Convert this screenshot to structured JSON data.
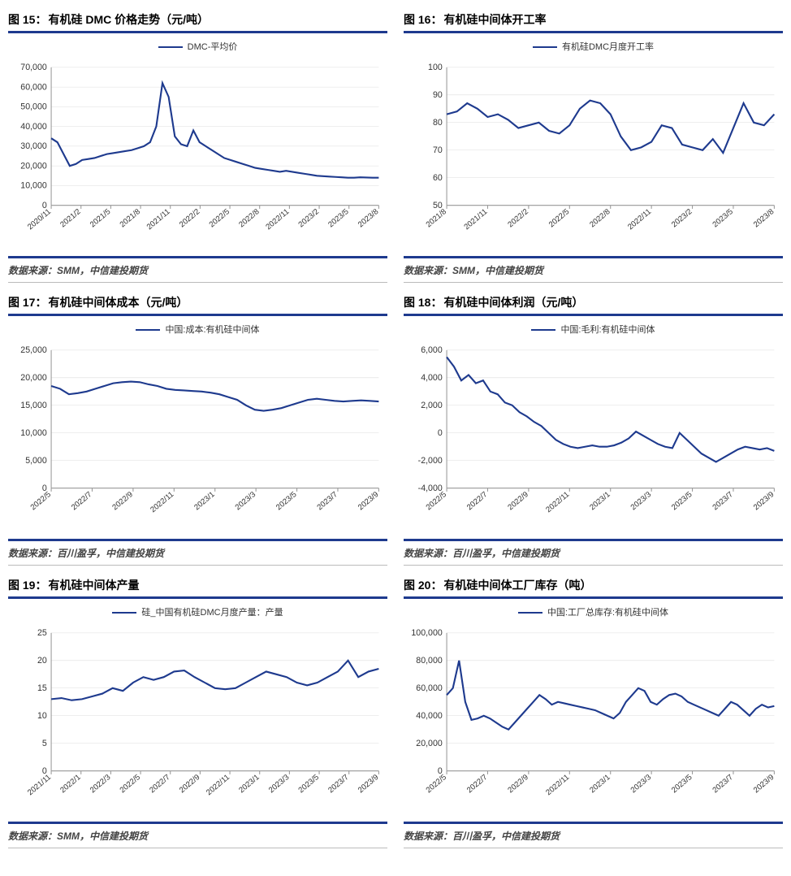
{
  "colors": {
    "primary": "#1e3a8e",
    "grid": "#dddddd",
    "axis": "#999999",
    "text": "#333333",
    "bg": "#ffffff"
  },
  "charts": [
    {
      "id": "c15",
      "fig_label": "图 15：",
      "title": "有机硅 DMC 价格走势（元/吨）",
      "legend": "DMC-平均价",
      "source": "数据来源：SMM，中信建投期货",
      "type": "line",
      "ylim": [
        0,
        70000
      ],
      "ytick_step": 10000,
      "yformat": "comma",
      "xticks": [
        "2020/11",
        "2021/2",
        "2021/5",
        "2021/8",
        "2021/11",
        "2022/2",
        "2022/5",
        "2022/8",
        "2022/11",
        "2023/2",
        "2023/5",
        "2023/8"
      ],
      "values": [
        34000,
        32000,
        26000,
        20000,
        21000,
        23000,
        23500,
        24000,
        25000,
        26000,
        26500,
        27000,
        27500,
        28000,
        29000,
        30000,
        32000,
        40000,
        62000,
        55000,
        35000,
        31000,
        30000,
        38000,
        32000,
        30000,
        28000,
        26000,
        24000,
        23000,
        22000,
        21000,
        20000,
        19000,
        18500,
        18000,
        17500,
        17000,
        17500,
        17000,
        16500,
        16000,
        15500,
        15000,
        14800,
        14600,
        14400,
        14200,
        14000,
        14000,
        14200,
        14100,
        14000,
        14000
      ],
      "line_color": "#1e3a8e",
      "line_width": 2
    },
    {
      "id": "c16",
      "fig_label": "图 16：",
      "title": "有机硅中间体开工率",
      "legend": "有机硅DMC月度开工率",
      "source": "数据来源：SMM，中信建投期货",
      "type": "line",
      "ylim": [
        50,
        100
      ],
      "ytick_step": 10,
      "yformat": "plain",
      "xticks": [
        "2021/8",
        "2021/11",
        "2022/2",
        "2022/5",
        "2022/8",
        "2022/11",
        "2023/2",
        "2023/5",
        "2023/8"
      ],
      "values": [
        83,
        84,
        87,
        85,
        82,
        83,
        81,
        78,
        79,
        80,
        77,
        76,
        79,
        85,
        88,
        87,
        83,
        75,
        70,
        71,
        73,
        79,
        78,
        72,
        71,
        70,
        74,
        69,
        78,
        87,
        80,
        79,
        83
      ],
      "line_color": "#1e3a8e",
      "line_width": 2
    },
    {
      "id": "c17",
      "fig_label": "图 17：",
      "title": "有机硅中间体成本（元/吨）",
      "legend": "中国:成本:有机硅中间体",
      "source": "数据来源：百川盈孚，中信建投期货",
      "type": "line",
      "ylim": [
        0,
        25000
      ],
      "ytick_step": 5000,
      "yformat": "comma",
      "xticks": [
        "2022/5",
        "2022/7",
        "2022/9",
        "2022/11",
        "2023/1",
        "2023/3",
        "2023/5",
        "2023/7",
        "2023/9"
      ],
      "values": [
        18500,
        18000,
        17000,
        17200,
        17500,
        18000,
        18500,
        19000,
        19200,
        19300,
        19200,
        18800,
        18500,
        18000,
        17800,
        17700,
        17600,
        17500,
        17300,
        17000,
        16500,
        16000,
        15000,
        14200,
        14000,
        14200,
        14500,
        15000,
        15500,
        16000,
        16200,
        16000,
        15800,
        15700,
        15800,
        15900,
        15800,
        15700
      ],
      "line_color": "#1e3a8e",
      "line_width": 2
    },
    {
      "id": "c18",
      "fig_label": "图 18：",
      "title": "有机硅中间体利润（元/吨）",
      "legend": "中国:毛利:有机硅中间体",
      "source": "数据来源：百川盈孚，中信建投期货",
      "type": "line",
      "ylim": [
        -4000,
        6000
      ],
      "ytick_step": 2000,
      "yformat": "comma",
      "xticks": [
        "2022/5",
        "2022/7",
        "2022/9",
        "2022/11",
        "2023/1",
        "2023/3",
        "2023/5",
        "2023/7",
        "2023/9"
      ],
      "values": [
        5500,
        4800,
        3800,
        4200,
        3600,
        3800,
        3000,
        2800,
        2200,
        2000,
        1500,
        1200,
        800,
        500,
        0,
        -500,
        -800,
        -1000,
        -1100,
        -1000,
        -900,
        -1000,
        -1000,
        -900,
        -700,
        -400,
        100,
        -200,
        -500,
        -800,
        -1000,
        -1100,
        0,
        -500,
        -1000,
        -1500,
        -1800,
        -2100,
        -1800,
        -1500,
        -1200,
        -1000,
        -1100,
        -1200,
        -1100,
        -1300
      ],
      "line_color": "#1e3a8e",
      "line_width": 2
    },
    {
      "id": "c19",
      "fig_label": "图 19：",
      "title": "有机硅中间体产量",
      "legend": "硅_中国有机硅DMC月度产量：产量",
      "source": "数据来源：SMM，中信建投期货",
      "type": "line",
      "ylim": [
        0,
        25
      ],
      "ytick_step": 5,
      "yformat": "plain",
      "xticks": [
        "2021/11",
        "2022/1",
        "2022/3",
        "2022/5",
        "2022/7",
        "2022/9",
        "2022/11",
        "2023/1",
        "2023/3",
        "2023/5",
        "2023/7",
        "2023/9"
      ],
      "values": [
        13,
        13.2,
        12.8,
        13,
        13.5,
        14,
        15,
        14.5,
        16,
        17,
        16.5,
        17,
        18,
        18.2,
        17,
        16,
        15,
        14.8,
        15,
        16,
        17,
        18,
        17.5,
        17,
        16,
        15.5,
        16,
        17,
        18,
        20,
        17,
        18,
        18.5
      ],
      "line_color": "#1e3a8e",
      "line_width": 2
    },
    {
      "id": "c20",
      "fig_label": "图 20：",
      "title": "有机硅中间体工厂库存（吨）",
      "legend": "中国:工厂总库存:有机硅中间体",
      "source": "数据来源：百川盈孚，中信建投期货",
      "type": "line",
      "ylim": [
        0,
        100000
      ],
      "ytick_step": 20000,
      "yformat": "comma",
      "xticks": [
        "2022/5",
        "2022/7",
        "2022/9",
        "2022/11",
        "2023/1",
        "2023/3",
        "2023/5",
        "2023/7",
        "2023/9"
      ],
      "values": [
        55000,
        60000,
        80000,
        50000,
        37000,
        38000,
        40000,
        38000,
        35000,
        32000,
        30000,
        35000,
        40000,
        45000,
        50000,
        55000,
        52000,
        48000,
        50000,
        49000,
        48000,
        47000,
        46000,
        45000,
        44000,
        42000,
        40000,
        38000,
        42000,
        50000,
        55000,
        60000,
        58000,
        50000,
        48000,
        52000,
        55000,
        56000,
        54000,
        50000,
        48000,
        46000,
        44000,
        42000,
        40000,
        45000,
        50000,
        48000,
        44000,
        40000,
        45000,
        48000,
        46000,
        47000
      ],
      "line_color": "#1e3a8e",
      "line_width": 2
    }
  ]
}
